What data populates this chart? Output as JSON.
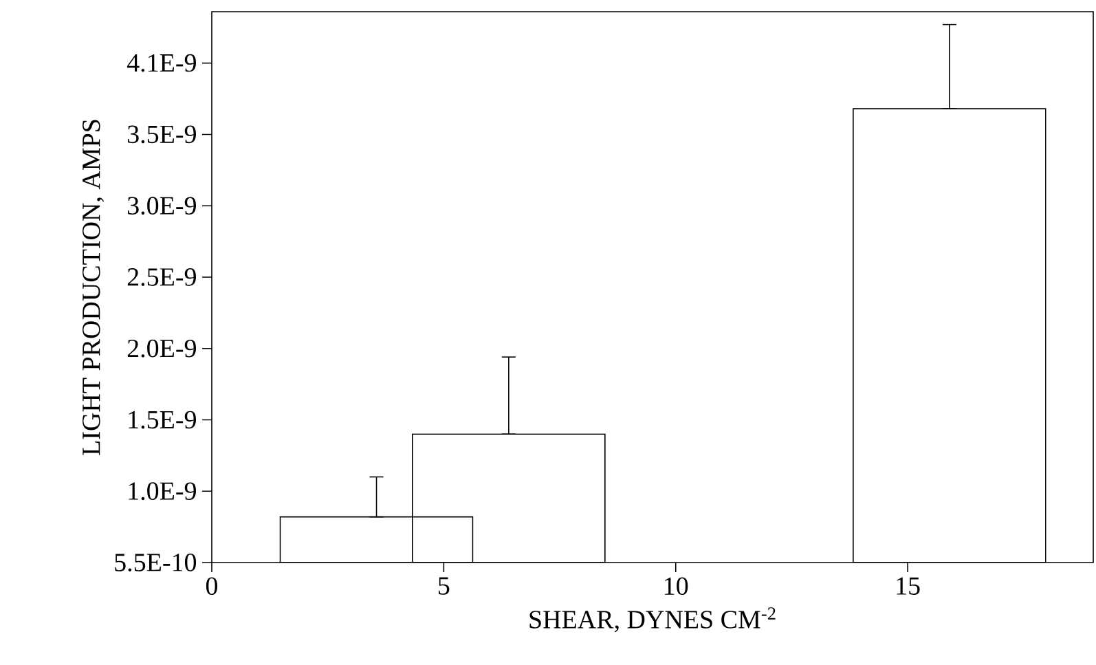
{
  "chart_data": {
    "type": "bar",
    "xlabel": "SHEAR, DYNES CM$^{-2}$",
    "ylabel": "LIGHT PRODUCTION, AMPS",
    "x": [
      3.55,
      6.4,
      15.9
    ],
    "base": [
      5.5e-10,
      5.5e-10,
      5.5e-10
    ],
    "values": [
      3.2e-10,
      9e-10,
      3.18e-09
    ],
    "errors": [
      [
        8.7e-10,
        1.15e-09
      ],
      [
        1.45e-09,
        1.99e-09
      ],
      [
        3.73e-09,
        4.32e-09
      ]
    ],
    "color": "#000000",
    "xlim": [
      0,
      19
    ],
    "xticks": [
      0,
      5,
      10,
      15
    ],
    "ylim": [
      5.5e-10,
      4.41e-09
    ],
    "yticks": [
      {
        "value": 5.5e-10,
        "label": "5.5E-10"
      },
      {
        "value": 1.05e-09,
        "label": "1.0E-9"
      },
      {
        "value": 1.55e-09,
        "label": "1.5E-9"
      },
      {
        "value": 2.05e-09,
        "label": "2.0E-9"
      },
      {
        "value": 2.55e-09,
        "label": "2.5E-9"
      },
      {
        "value": 3.05e-09,
        "label": "3.0E-9"
      },
      {
        "value": 3.55e-09,
        "label": "3.5E-9"
      },
      {
        "value": 4.05e-09,
        "label": "4.1E-9"
      }
    ]
  }
}
